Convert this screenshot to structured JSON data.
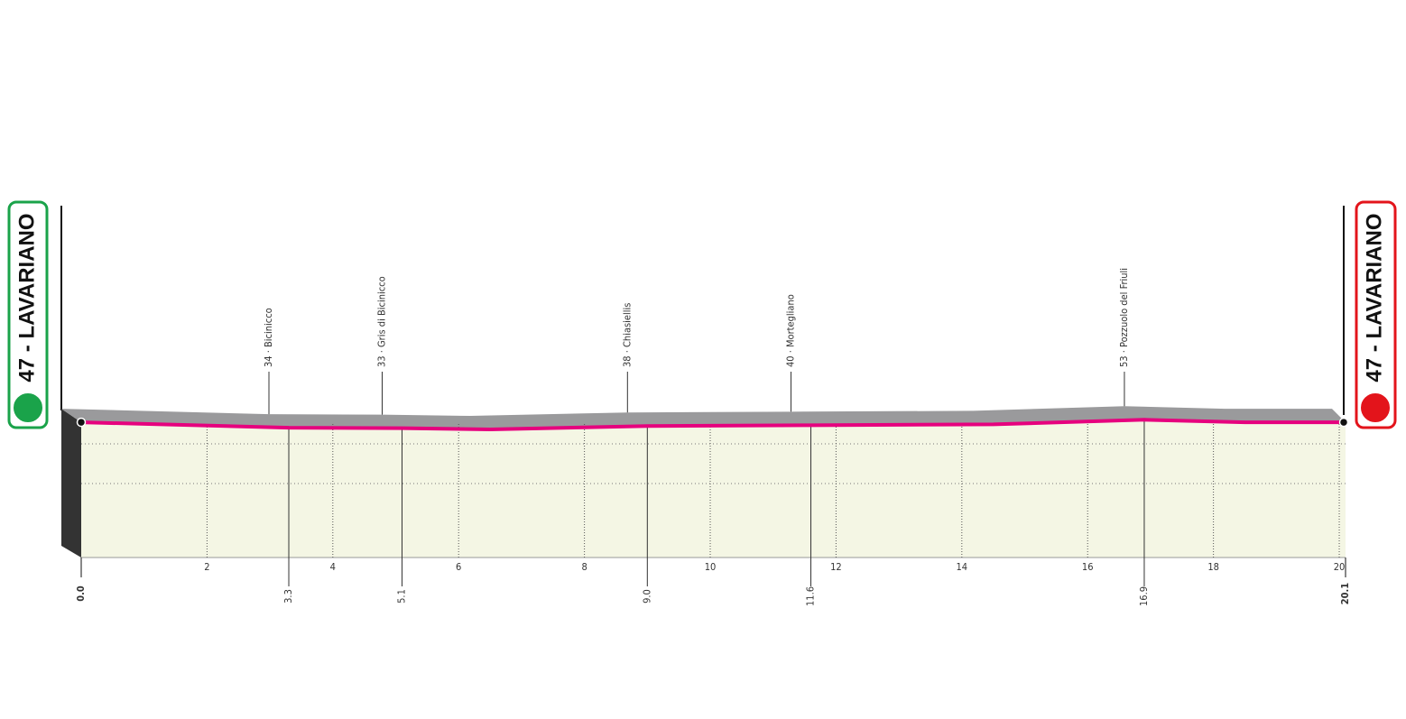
{
  "chart_data": {
    "type": "profile",
    "start": "47 - LAVARIANO",
    "finish": "47 - LAVARIANO",
    "x": [
      0,
      3.3,
      5.1,
      6.5,
      9.0,
      11.6,
      14.5,
      16.9,
      18.5,
      20.1
    ],
    "values": [
      47,
      34,
      33,
      30,
      38,
      40,
      42,
      53,
      47,
      47
    ],
    "color": "#e6007e",
    "xlim": [
      0,
      20.1
    ],
    "ylim": [
      0,
      60
    ],
    "xticks": [
      2,
      4,
      6,
      8,
      10,
      12,
      14,
      16,
      18,
      20
    ],
    "distances": [
      {
        "value": 0,
        "label": "0.0"
      },
      {
        "value": 20.1,
        "label": "20.1"
      }
    ],
    "waypoints": [
      {
        "label": "34 · Bicinicco",
        "km": {
          "value": 3.3,
          "label": "3.3"
        }
      },
      {
        "label": "33 · Gris di Bicinicco",
        "km": {
          "value": 5.1,
          "label": "5.1"
        }
      },
      {
        "label": "38 · Chiasiellis",
        "km": {
          "value": 9.0,
          "label": "9.0"
        }
      },
      {
        "label": "40 · Mortegliano",
        "km": {
          "value": 11.6,
          "label": "11.6"
        }
      },
      {
        "label": "53 · Pozzuolo del Friuli",
        "km": {
          "value": 16.9,
          "label": "16.9"
        }
      }
    ]
  }
}
